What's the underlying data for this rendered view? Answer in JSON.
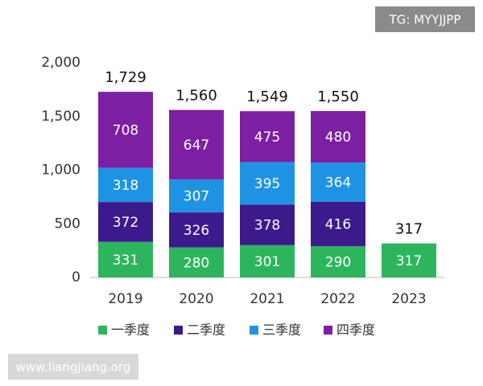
{
  "chart_data": {
    "type": "stacked-bar",
    "categories": [
      "2019",
      "2020",
      "2021",
      "2022",
      "2023"
    ],
    "series": [
      {
        "name": "一季度",
        "color": "#2db55d",
        "values": [
          331,
          280,
          301,
          290,
          317
        ]
      },
      {
        "name": "二季度",
        "color": "#3c1a8c",
        "values": [
          372,
          326,
          378,
          416,
          0
        ]
      },
      {
        "name": "三季度",
        "color": "#1f93e3",
        "values": [
          318,
          307,
          395,
          364,
          0
        ]
      },
      {
        "name": "四季度",
        "color": "#7d1fa3",
        "values": [
          708,
          647,
          475,
          480,
          0
        ]
      }
    ],
    "totals": {
      "values": [
        1729,
        1560,
        1549,
        1550,
        317
      ],
      "value_labels": [
        "1,729",
        "1,560",
        "1,549",
        "1,550",
        "317"
      ]
    },
    "ylim": [
      0,
      2000
    ],
    "yticks": [
      0,
      500,
      {
        "value": 1000,
        "label": "1,000"
      },
      {
        "value": 1500,
        "label": "1,500"
      },
      {
        "value": 2000,
        "label": "2,000"
      }
    ],
    "grid": false
  },
  "watermarks": {
    "top": "TG: MYYJJPP",
    "bottom": "www.liangjiang.org"
  }
}
